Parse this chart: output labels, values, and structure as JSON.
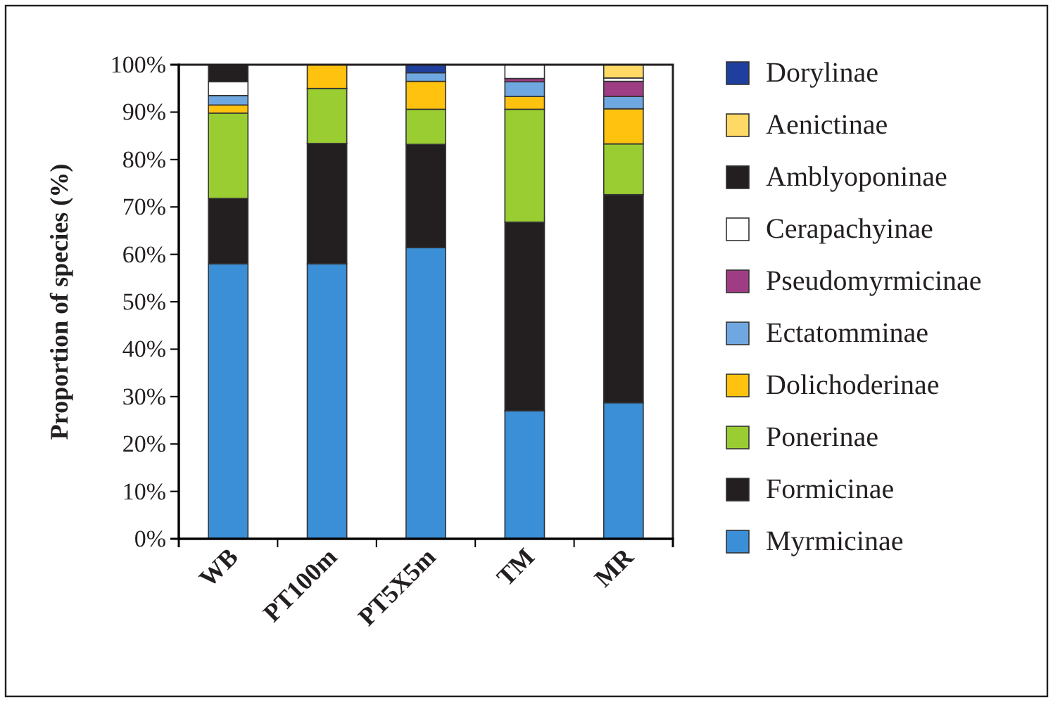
{
  "chart_data": {
    "type": "bar",
    "stacked": true,
    "ylabel": "Proportion of species (%)",
    "categories": [
      "WB",
      "PT100m",
      "PT5X5m",
      "TM",
      "MR"
    ],
    "ylim": [
      0,
      100
    ],
    "yticks": [
      {
        "value": 0,
        "label": "0%"
      },
      {
        "value": 10,
        "label": "10%"
      },
      {
        "value": 20,
        "label": "20%"
      },
      {
        "value": 30,
        "label": "30%"
      },
      {
        "value": 40,
        "label": "40%"
      },
      {
        "value": 50,
        "label": "50%"
      },
      {
        "value": 60,
        "label": "60%"
      },
      {
        "value": 70,
        "label": "70%"
      },
      {
        "value": 80,
        "label": "80%"
      },
      {
        "value": 90,
        "label": "90%"
      },
      {
        "value": 100,
        "label": "100%"
      }
    ],
    "legend": "right",
    "grid": false,
    "series": [
      {
        "name": "Myrmicinae",
        "color": "#3a8fd6",
        "values": [
          58,
          58,
          61.4,
          27,
          28.7
        ]
      },
      {
        "name": "Formicinae",
        "color": "#231f20",
        "values": [
          13.8,
          25.4,
          21.8,
          39.8,
          43.9
        ]
      },
      {
        "name": "Ponerinae",
        "color": "#9acd32",
        "values": [
          18,
          11.6,
          7.4,
          23.8,
          10.7
        ]
      },
      {
        "name": "Dolichoderinae",
        "color": "#ffc20e",
        "values": [
          1.7,
          5,
          5.9,
          2.7,
          7.4
        ]
      },
      {
        "name": "Ectatomminae",
        "color": "#6fa8e0",
        "values": [
          2,
          null,
          1.8,
          3.1,
          2.6
        ]
      },
      {
        "name": "Pseudomyrmicinae",
        "color": "#9e3d84",
        "values": [
          null,
          null,
          null,
          0.7,
          3.2
        ]
      },
      {
        "name": "Cerapachyinae",
        "color": "#ffffff",
        "values": [
          2.9,
          null,
          null,
          2.9,
          0.7
        ]
      },
      {
        "name": "Amblyoponinae",
        "color": "#231f20",
        "values": [
          3.6,
          null,
          null,
          null,
          null
        ]
      },
      {
        "name": "Aenictinae",
        "color": "#ffd966",
        "values": [
          null,
          null,
          null,
          null,
          2.8
        ]
      },
      {
        "name": "Dorylinae",
        "color": "#1f3f9e",
        "values": [
          null,
          null,
          1.7,
          null,
          null
        ]
      }
    ]
  }
}
